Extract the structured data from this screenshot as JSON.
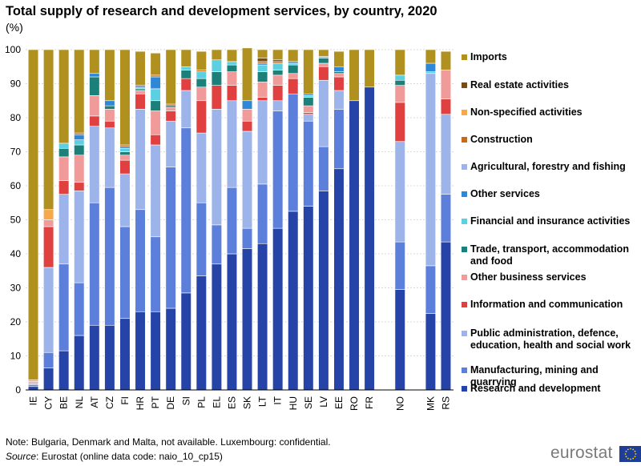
{
  "title": "Total supply of research and development services, by country, 2020",
  "subtitle": "(%)",
  "note": "Note: Bulgaria, Denmark and Malta, not available. Luxembourg: confidential.",
  "source_label": "Source",
  "source_text": ": Eurostat (online data code: naio_10_cp15)",
  "logo_text": "eurostat",
  "chart_data": {
    "type": "bar",
    "stacked": true,
    "title": "Total supply of research and development services, by country, 2020",
    "ylabel": "(%)",
    "xlabel": "",
    "ylim": [
      0,
      100
    ],
    "yticks": [
      0,
      10,
      20,
      30,
      40,
      50,
      60,
      70,
      80,
      90,
      100
    ],
    "grid": true,
    "legend_position": "right",
    "categories": [
      "IE",
      "CY",
      "BE",
      "NL",
      "AT",
      "CZ",
      "FI",
      "HR",
      "PT",
      "DE",
      "SI",
      "PL",
      "EL",
      "ES",
      "SK",
      "LT",
      "IT",
      "HU",
      "SE",
      "LV",
      "EE",
      "RO",
      "FR",
      "",
      "NO",
      "",
      "MK",
      "RS"
    ],
    "series": [
      {
        "name": "Research and development",
        "color": "#2644a7",
        "values": [
          1,
          6.5,
          11.5,
          16,
          19,
          19,
          21,
          23,
          23,
          24,
          28.5,
          33.5,
          37,
          40,
          41.5,
          43,
          47.5,
          52.5,
          54,
          58.5,
          65,
          85,
          89,
          0,
          29.5,
          0,
          22.5,
          43.5
        ]
      },
      {
        "name": "Manufacturing, mining and quarrying",
        "color": "#5c7fdb",
        "values": [
          0.5,
          4.5,
          25.5,
          15.5,
          36,
          40.5,
          27,
          30,
          22,
          41.5,
          48.5,
          21.5,
          11.5,
          19.5,
          6,
          17.5,
          34.5,
          34.5,
          25,
          13,
          17.5,
          0,
          0,
          0,
          14,
          0,
          14,
          14
        ]
      },
      {
        "name": "Public administration, defence, education, health and social work",
        "color": "#9db4ea",
        "values": [
          0.5,
          25,
          20.5,
          27,
          22.5,
          17.5,
          15.5,
          29.5,
          27,
          13.5,
          11,
          20.5,
          34,
          25.5,
          28.5,
          24.5,
          3,
          0,
          2,
          19.5,
          5.5,
          0,
          0,
          0,
          29.5,
          0,
          56.5,
          23.5
        ]
      },
      {
        "name": "Information and communication",
        "color": "#e04040",
        "values": [
          0,
          12,
          4,
          2.5,
          3,
          2,
          4,
          4.5,
          3,
          3,
          3.5,
          9.5,
          7,
          4.5,
          3,
          1,
          4.5,
          4.5,
          0.5,
          4,
          4,
          0,
          0,
          0,
          11.5,
          0,
          0,
          4.5
        ]
      },
      {
        "name": "Other business services",
        "color": "#f09a9a",
        "values": [
          0.5,
          2,
          7,
          8,
          6,
          3.5,
          1.5,
          1,
          7,
          1,
          0,
          4,
          0,
          4,
          3.5,
          4.5,
          3,
          1.5,
          2,
          1,
          1,
          0,
          0,
          0,
          5,
          0,
          0,
          8.5
        ]
      },
      {
        "name": "Trade, transport, accommodation and food",
        "color": "#1b7f7a",
        "values": [
          0,
          0,
          2.5,
          3,
          5.5,
          1,
          1,
          0.5,
          3,
          0.5,
          2.5,
          2.5,
          4,
          2,
          0,
          3,
          1.5,
          2.5,
          2.5,
          1.5,
          0.5,
          0,
          0,
          0,
          1.5,
          0,
          0,
          0
        ]
      },
      {
        "name": "Financial and insurance activities",
        "color": "#5ccfe0",
        "values": [
          0,
          0,
          1.5,
          1.5,
          0,
          0,
          1,
          0.5,
          3.5,
          0,
          1,
          2,
          3.5,
          1,
          0,
          2,
          2,
          0.5,
          0.5,
          0.5,
          0,
          0,
          0,
          0,
          1.5,
          0,
          0.5,
          0
        ]
      },
      {
        "name": "Other services",
        "color": "#2f87d8",
        "values": [
          0,
          0,
          0,
          1.5,
          1,
          1.5,
          0.5,
          0.5,
          3.5,
          0,
          0,
          0,
          0,
          0,
          2.5,
          0.5,
          0,
          0.5,
          0.5,
          0,
          1.5,
          0,
          0,
          0,
          0,
          0,
          2.5,
          0
        ]
      },
      {
        "name": "Agricultural, forestry and fishing",
        "color": "#9db4ea",
        "values": [
          0,
          0,
          0,
          0,
          0,
          0,
          0,
          0,
          0,
          0,
          0,
          0,
          0,
          0,
          0,
          0,
          0,
          0,
          0,
          0,
          0,
          0,
          0,
          0,
          0,
          0,
          0,
          0
        ]
      },
      {
        "name": "Construction",
        "color": "#c46b1a",
        "values": [
          0,
          0,
          0,
          0.5,
          0,
          0,
          0.5,
          0,
          0.5,
          0.5,
          0,
          0.5,
          0,
          0,
          0,
          0.5,
          0.5,
          0,
          0,
          0,
          0,
          0,
          0,
          0,
          0,
          0,
          0,
          0
        ]
      },
      {
        "name": "Non-specified activities",
        "color": "#f7a84a",
        "values": [
          0.5,
          3,
          0,
          0,
          0,
          0,
          0,
          0,
          0,
          0,
          0,
          0,
          0,
          0,
          0,
          0,
          0,
          0,
          0,
          0,
          0,
          0,
          0,
          0,
          0,
          0,
          0,
          0
        ]
      },
      {
        "name": "Real estate activities",
        "color": "#7a4a14",
        "values": [
          0,
          0,
          0,
          0,
          0,
          0,
          0,
          0,
          0,
          0,
          0,
          0,
          0,
          0,
          0,
          1,
          0.5,
          0,
          0,
          0,
          0,
          0,
          0,
          0,
          0,
          0,
          0,
          0
        ]
      },
      {
        "name": "Imports",
        "color": "#b09120",
        "values": [
          97,
          47,
          27.5,
          24.5,
          7,
          15,
          28,
          10,
          6.5,
          16,
          5,
          5.5,
          3,
          3.5,
          15.5,
          2.5,
          3,
          3.5,
          13,
          2,
          4.5,
          15,
          11,
          0,
          7.5,
          0,
          4,
          5.5
        ]
      }
    ],
    "legend": [
      {
        "label": "Imports",
        "color": "#b09120"
      },
      {
        "label": "Real estate activities",
        "color": "#7a4a14"
      },
      {
        "label": "Non-specified activities",
        "color": "#f7a84a"
      },
      {
        "label": "Construction",
        "color": "#c46b1a"
      },
      {
        "label": "Agricultural, forestry and fishing",
        "color": "#9db4ea"
      },
      {
        "label": "Other services",
        "color": "#2f87d8"
      },
      {
        "label": "Financial and insurance activities",
        "color": "#5ccfe0"
      },
      {
        "label": "Trade, transport, accommodation and food",
        "color": "#1b7f7a"
      },
      {
        "label": "Other business services",
        "color": "#f09a9a"
      },
      {
        "label": "Information and communication",
        "color": "#e04040"
      },
      {
        "label": "Public administration, defence, education, health and social work",
        "color": "#9db4ea"
      },
      {
        "label": "Manufacturing, mining and quarrying",
        "color": "#5c7fdb"
      },
      {
        "label": "Research and development",
        "color": "#2644a7"
      }
    ]
  }
}
